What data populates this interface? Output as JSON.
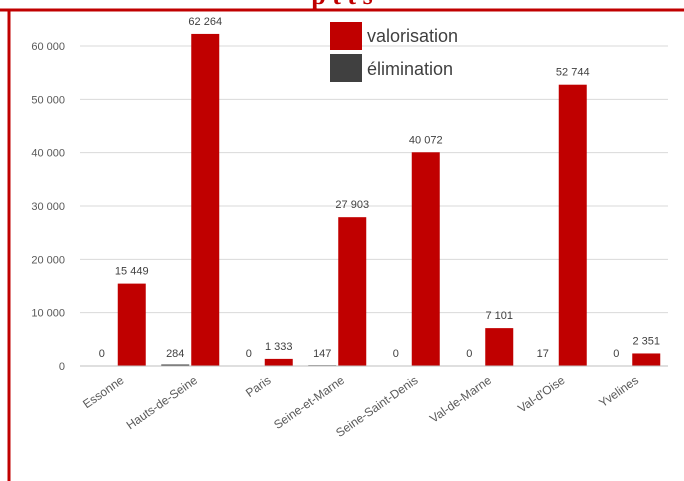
{
  "title": "                 p      t  t     s",
  "colors": {
    "valorisation": "#c00000",
    "elimination": "#404040",
    "frame": "#c00000",
    "grid": "#d9d9d9",
    "text": "#595959"
  },
  "chart_data": {
    "type": "bar",
    "categories": [
      "Essonne",
      "Hauts-de-Seine",
      "Paris",
      "Seine-et-Marne",
      "Seine-Saint-Denis",
      "Val-de-Marne",
      "Val-d'Oise",
      "Yvelines"
    ],
    "series": [
      {
        "name": "élimination",
        "values": [
          0,
          284,
          0,
          147,
          0,
          0,
          17,
          0
        ],
        "labels": [
          "0",
          "284",
          "0",
          "147",
          "0",
          "0",
          "17",
          "0"
        ]
      },
      {
        "name": "valorisation",
        "values": [
          15449,
          62264,
          1333,
          27903,
          40072,
          7101,
          52744,
          2351
        ],
        "labels": [
          "15 449",
          "62 264",
          "1 333",
          "27 903",
          "40 072",
          "7 101",
          "52 744",
          "2 351"
        ]
      }
    ],
    "yticks": [
      0,
      10000,
      20000,
      30000,
      40000,
      50000,
      60000
    ],
    "ytick_labels": [
      "0",
      "10 000",
      "20 000",
      "30 000",
      "40 000",
      "50 000",
      "60 000"
    ],
    "ylim": [
      0,
      63000
    ],
    "grid": true,
    "legend": "top-center",
    "legend_entries": [
      "valorisation",
      "élimination"
    ]
  }
}
